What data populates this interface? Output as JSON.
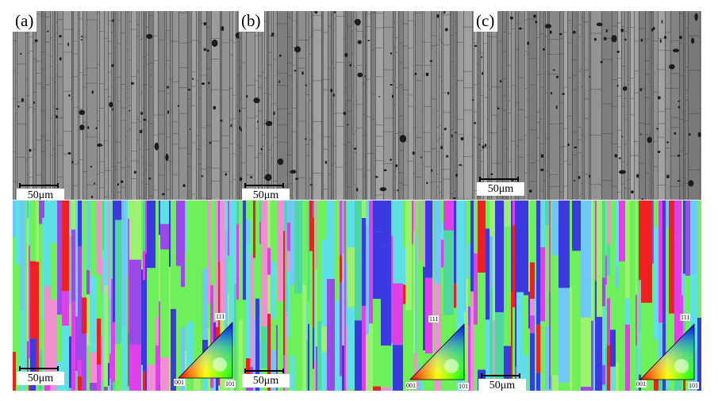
{
  "panels": [
    {
      "label": "(a)",
      "scale": "50μm",
      "ebsd_scale": "50μm"
    },
    {
      "label": "(b)",
      "scale": "50μm",
      "ebsd_scale": "50μm"
    },
    {
      "label": "(c)",
      "scale": "50μm",
      "ebsd_scale": "50μm"
    }
  ],
  "ipf_legend": {
    "top": "111",
    "left": "001",
    "right": "101"
  },
  "colors": {
    "sem_background": "#8c8c8c",
    "grain_boundary": "#3a3a3a",
    "pore": "#1c1c1c",
    "ebsd_green": "#6ef05a",
    "ebsd_cyan": "#5ee0e6",
    "ebsd_blue": "#3a3ae0",
    "ebsd_magenta": "#e040e8",
    "ebsd_red": "#ee2020",
    "ebsd_purple": "#9a4ae6"
  }
}
